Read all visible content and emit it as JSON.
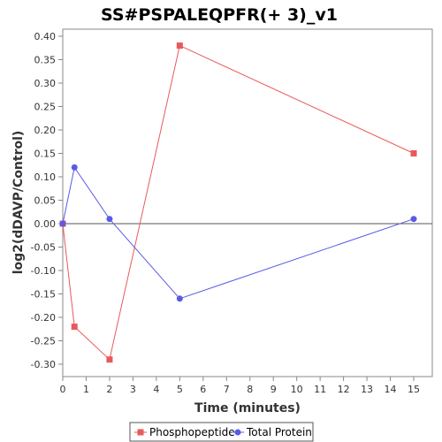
{
  "chart_data": {
    "type": "line",
    "title": "SS#PSPALEQPFR(+ 3)_v1",
    "xlabel": "Time (minutes)",
    "ylabel": "log2(dDAVP/Control)",
    "xlim": [
      0,
      16
    ],
    "ylim": [
      -0.33,
      0.42
    ],
    "xticks": [
      0,
      1,
      2,
      3,
      4,
      5,
      6,
      7,
      8,
      9,
      10,
      11,
      12,
      13,
      14,
      15
    ],
    "yticks": [
      -0.3,
      -0.25,
      -0.2,
      -0.15,
      -0.1,
      -0.05,
      0.0,
      0.05,
      0.1,
      0.15,
      0.2,
      0.25,
      0.3,
      0.35,
      0.4
    ],
    "ytick_labels": [
      "-0.30",
      "-0.25",
      "-0.20",
      "-0.15",
      "-0.10",
      "-0.05",
      "0.00",
      "0.05",
      "0.10",
      "0.15",
      "0.20",
      "0.25",
      "0.30",
      "0.35",
      "0.40"
    ],
    "grid": false,
    "zero_line": true,
    "legend_position": "bottom",
    "series": [
      {
        "name": "Phosphopeptide",
        "color": "#e85a5a",
        "marker": "square",
        "x": [
          0,
          0.5,
          2,
          5,
          15
        ],
        "y": [
          0.0,
          -0.22,
          -0.29,
          0.38,
          0.15
        ]
      },
      {
        "name": "Total Protein",
        "color": "#5a5ae8",
        "marker": "circle",
        "x": [
          0,
          0.5,
          2,
          5,
          15
        ],
        "y": [
          0.0,
          0.12,
          0.01,
          -0.16,
          0.01
        ]
      }
    ]
  }
}
